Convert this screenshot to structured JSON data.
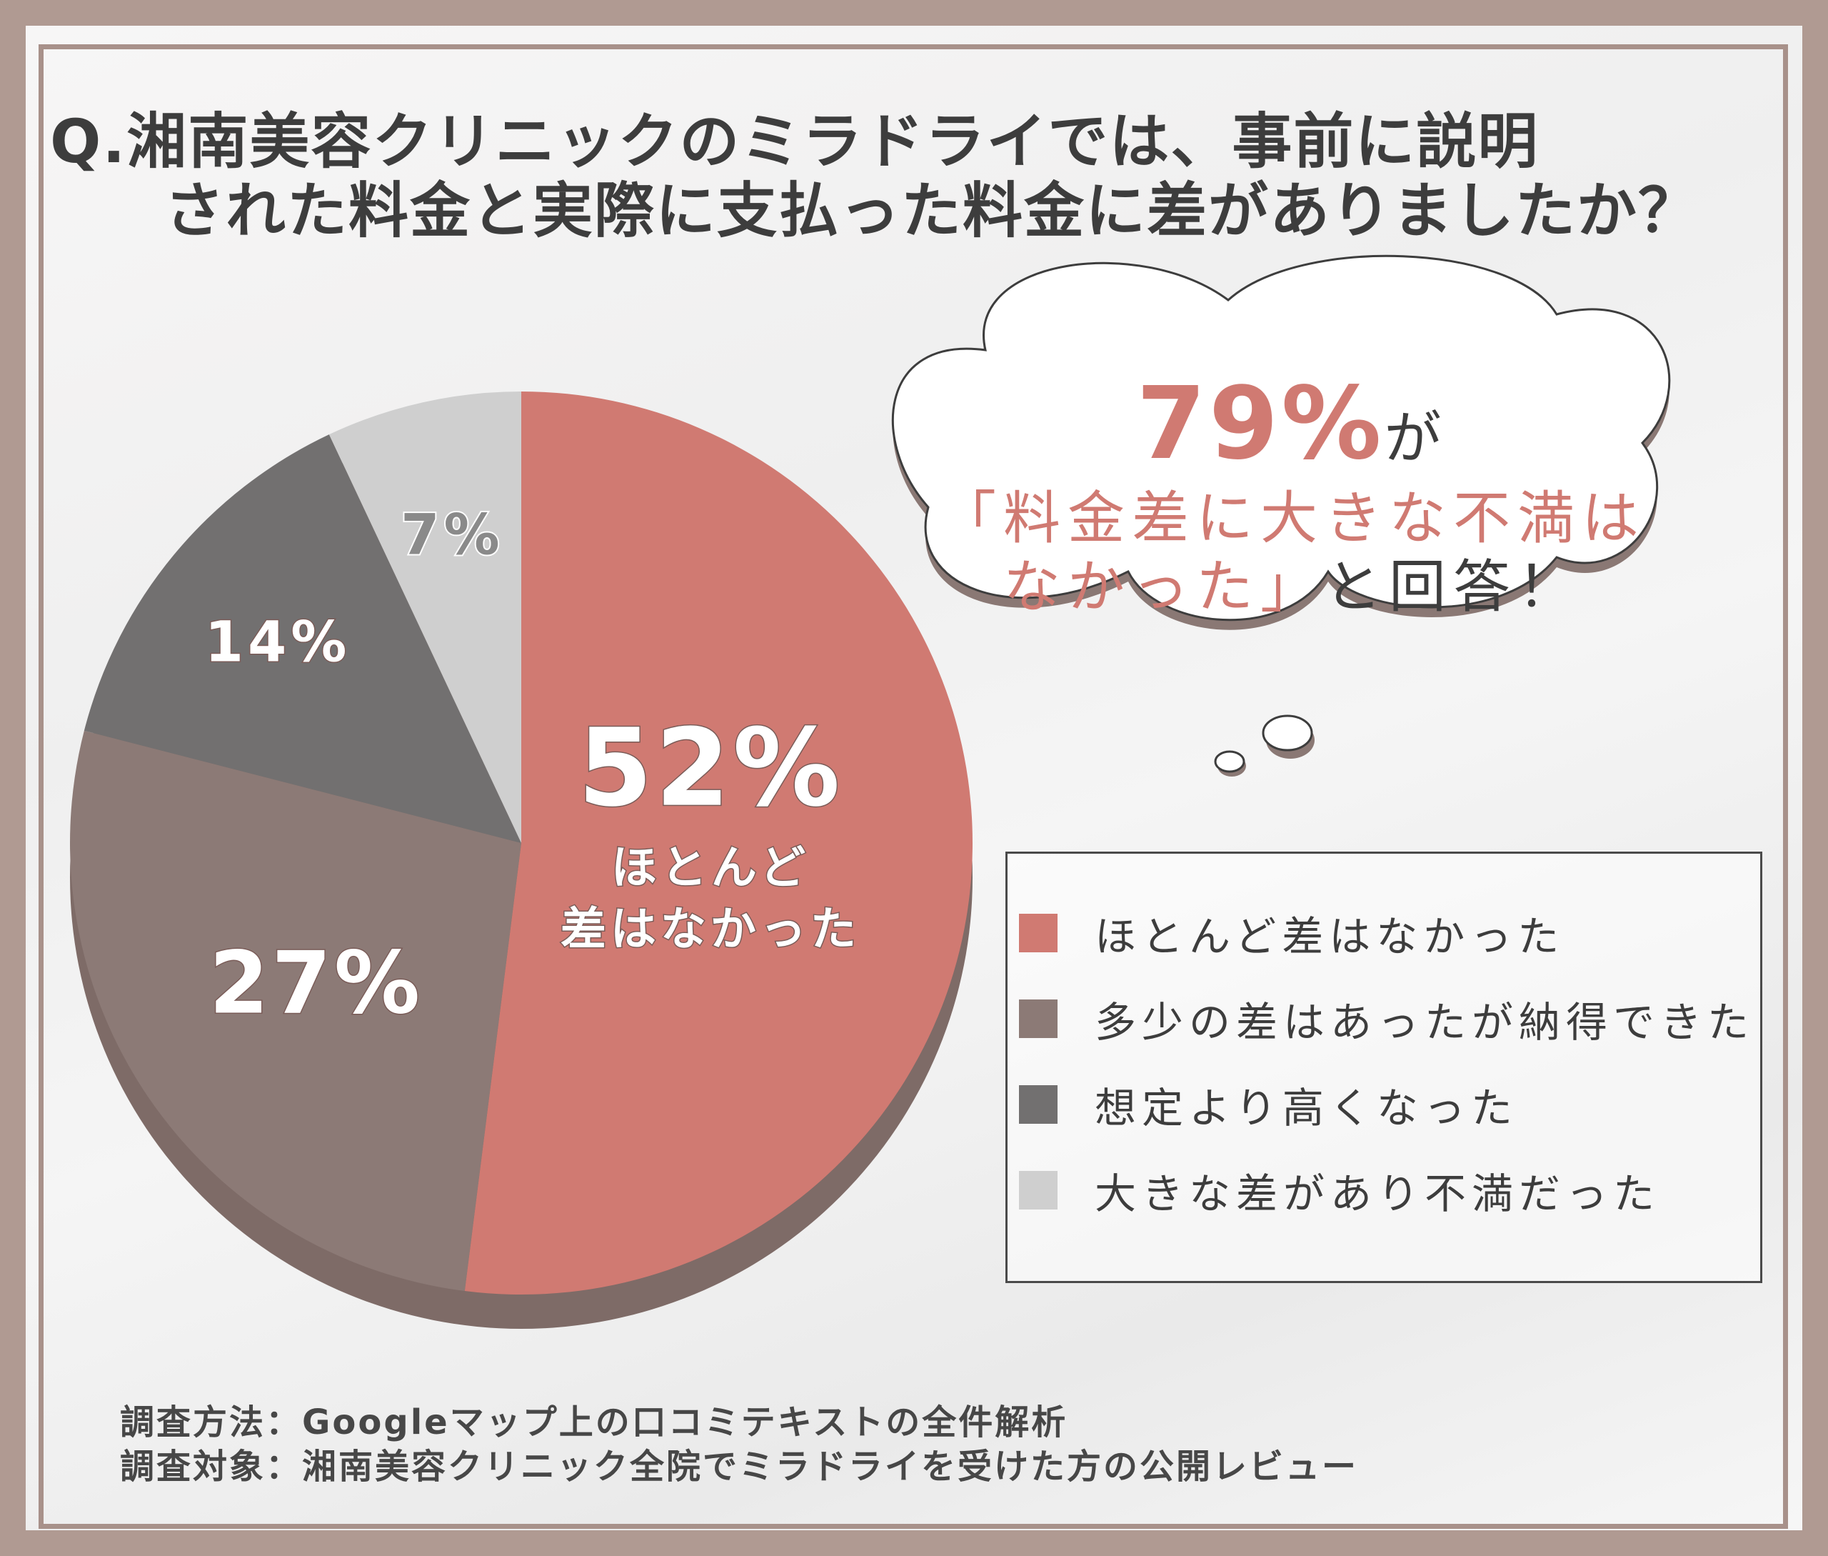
{
  "title": {
    "line1": "Q.湘南美容クリニックのミラドライでは、事前に説明",
    "line2": "された料金と実際に支払った料金に差がありましたか？"
  },
  "callout": {
    "percent": "79%",
    "ga": "が",
    "quote_line1": "「料金差に大きな不満は",
    "quote_line2": "なかった」",
    "tail": "と回答！"
  },
  "chart_data": {
    "type": "pie",
    "slices": [
      {
        "label": "ほとんど差はなかった",
        "value": 52,
        "display": "52%",
        "color": "#d07a72",
        "inner_label_lines": [
          "ほとんど",
          "差はなかった"
        ]
      },
      {
        "label": "多少の差はあったが納得できた",
        "value": 27,
        "display": "27%",
        "color": "#8c7a76",
        "inner_label_lines": []
      },
      {
        "label": "想定より高くなった",
        "value": 14,
        "display": "14%",
        "color": "#727070",
        "inner_label_lines": []
      },
      {
        "label": "大きな差があり不満だった",
        "value": 7,
        "display": "7%",
        "color": "#cfcfcf",
        "inner_label_lines": []
      }
    ]
  },
  "footer": {
    "line1": "調査方法：Googleマップ上の口コミテキストの全件解析",
    "line2": "調査対象：湘南美容クリニック全院でミラドライを受けた方の公開レビュー"
  }
}
